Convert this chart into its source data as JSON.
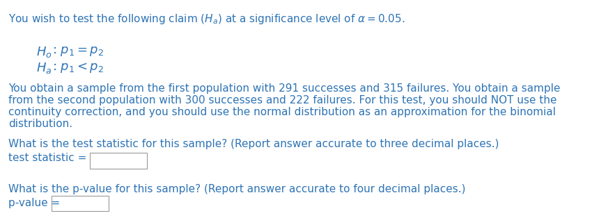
{
  "bg_color": "#ffffff",
  "text_color": "#2E74B5",
  "line1_plain": "You wish to test the following claim ",
  "line1_math": "(H_a)",
  "line1_end": " at a significance level of ",
  "line1_alpha": "\\alpha = 0.05",
  "line1_dot": ".",
  "para1_line1": "You obtain a sample from the first population with 291 successes and 315 failures. You obtain a sample",
  "para1_line2": "from the second population with 300 successes and 222 failures. For this test, you should NOT use the",
  "para1_line3": "continuity correction, and you should use the normal distribution as an approximation for the binomial",
  "para1_line4": "distribution.",
  "q1_line": "What is the test statistic for this sample? (Report answer accurate to three decimal places.)",
  "ts_label": "test statistic =",
  "q2_line": "What is the p-value for this sample? (Report answer accurate to four decimal places.)",
  "pv_label": "p-value =",
  "font_size_main": 11.0,
  "font_size_hyp": 13.0
}
